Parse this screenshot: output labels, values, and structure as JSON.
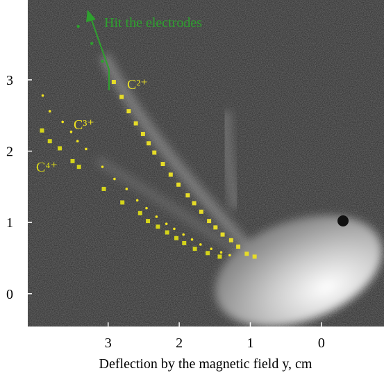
{
  "chart_data": {
    "type": "scatter",
    "xlabel": "Deflection by the magnetic field y, cm",
    "xlim": [
      4.13,
      -0.88
    ],
    "ylim": [
      -0.46,
      4.12
    ],
    "xticks": [
      3,
      2,
      1,
      0
    ],
    "yticks": [
      0,
      1,
      2,
      3
    ],
    "series": [
      {
        "name": "C²⁺",
        "color": "#e6dc28",
        "marker": "square",
        "x": [
          2.92,
          2.81,
          2.71,
          2.61,
          2.51,
          2.43,
          2.35,
          2.23,
          2.12,
          2.01,
          1.88,
          1.79,
          1.69,
          1.58,
          1.49,
          1.39,
          1.27,
          1.17,
          1.05,
          0.94
        ],
        "values": [
          2.97,
          2.76,
          2.56,
          2.39,
          2.24,
          2.11,
          1.98,
          1.82,
          1.67,
          1.53,
          1.38,
          1.27,
          1.15,
          1.02,
          0.93,
          0.83,
          0.75,
          0.66,
          0.56,
          0.52
        ]
      },
      {
        "name": "C³⁺",
        "color": "#f2e41e",
        "marker": "dot",
        "x": [
          3.92,
          3.82,
          3.64,
          3.52,
          3.43,
          3.31,
          3.08,
          2.91,
          2.74,
          2.59,
          2.46,
          2.32,
          2.18,
          2.07,
          1.94,
          1.82,
          1.7,
          1.55,
          1.41,
          1.29
        ],
        "values": [
          2.78,
          2.56,
          2.41,
          2.27,
          2.14,
          2.03,
          1.78,
          1.61,
          1.47,
          1.31,
          1.2,
          1.08,
          0.98,
          0.91,
          0.83,
          0.76,
          0.69,
          0.63,
          0.58,
          0.54
        ]
      },
      {
        "name": "C⁴⁺",
        "color": "#d4d41a",
        "marker": "square",
        "x": [
          3.93,
          3.82,
          3.68,
          3.5,
          3.41,
          3.06,
          2.8,
          2.55,
          2.44,
          2.3,
          2.17,
          2.04,
          1.93,
          1.78,
          1.6,
          1.43
        ],
        "values": [
          2.29,
          2.14,
          2.04,
          1.86,
          1.78,
          1.47,
          1.28,
          1.13,
          1.02,
          0.94,
          0.86,
          0.78,
          0.71,
          0.63,
          0.57,
          0.52
        ]
      }
    ],
    "annotation": {
      "text": "Hit the electrodes",
      "color": "#2ea02e",
      "x": [
        3.42,
        3.23,
        3.08
      ],
      "values": [
        3.75,
        3.51,
        3.26
      ]
    }
  }
}
